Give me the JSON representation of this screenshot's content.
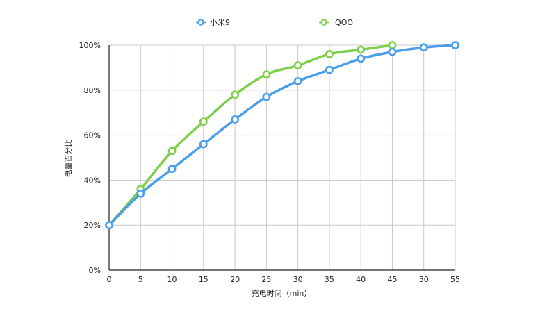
{
  "chart_data": {
    "type": "line",
    "xlabel": "充电时间（min）",
    "ylabel": "电量百分比",
    "x_ticks": [
      "0",
      "5",
      "10",
      "15",
      "20",
      "25",
      "30",
      "35",
      "40",
      "45",
      "50",
      "55"
    ],
    "y_ticks": [
      "0%",
      "20%",
      "40%",
      "60%",
      "80%",
      "100%"
    ],
    "xlim": [
      0,
      55
    ],
    "ylim": [
      0,
      100
    ],
    "grid": true,
    "legend_position": "top-center",
    "series": [
      {
        "name": "小米9",
        "color": "#4a9eea",
        "x": [
          0,
          5,
          10,
          15,
          20,
          25,
          30,
          35,
          40,
          45,
          50,
          55
        ],
        "values": [
          20,
          34,
          45,
          56,
          67,
          77,
          84,
          89,
          94,
          97,
          99,
          100
        ]
      },
      {
        "name": "iQOO",
        "color": "#7ed04b",
        "x": [
          0,
          5,
          10,
          15,
          20,
          25,
          30,
          35,
          40,
          45
        ],
        "values": [
          20,
          36,
          53,
          66,
          78,
          87,
          91,
          96,
          98,
          100
        ]
      }
    ]
  }
}
